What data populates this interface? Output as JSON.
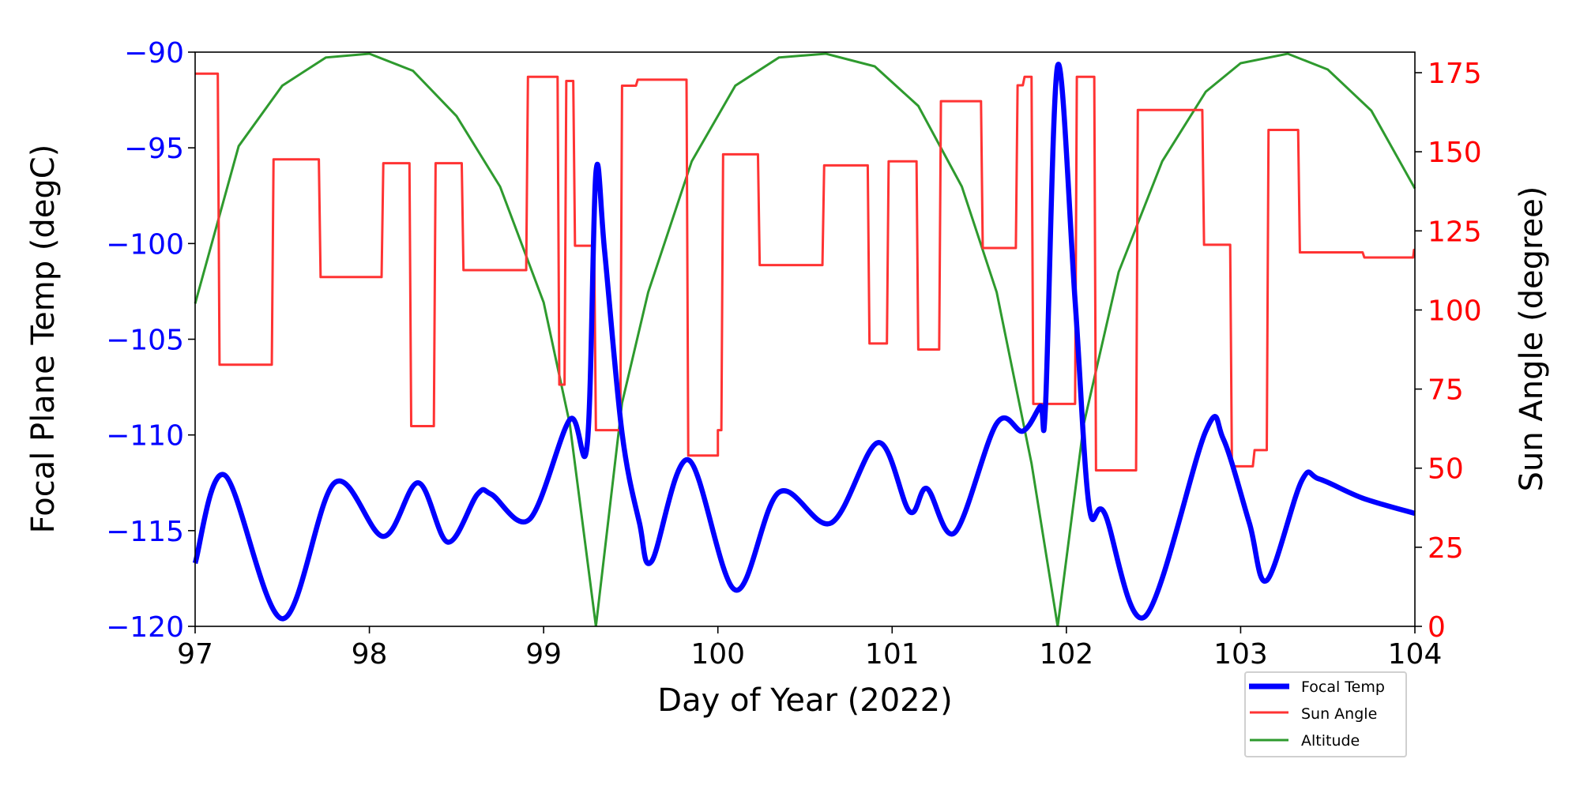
{
  "chart_data": {
    "type": "line",
    "xlabel": "Day of Year (2022)",
    "ylabel_left": "Focal Plane Temp (degC)",
    "ylabel_right": "Sun Angle (degree)",
    "xlim": [
      97,
      104
    ],
    "ylim_left": [
      -120,
      -90
    ],
    "ylim_right": [
      0,
      181.5
    ],
    "x_ticks": [
      "97",
      "98",
      "99",
      "100",
      "101",
      "102",
      "103",
      "104"
    ],
    "y_left_ticks": [
      "-90",
      "-95",
      "-100",
      "-105",
      "-110",
      "-115",
      "-120"
    ],
    "y_right_ticks": [
      "175",
      "150",
      "125",
      "100",
      "75",
      "50",
      "25",
      "0"
    ],
    "legend_position": "lower-right (below axes)",
    "colors": {
      "focal": "#0000ff",
      "sun": "#ff3333",
      "altitude": "#2e9a2e",
      "left_axis": "#0000ff",
      "right_axis": "#ff0000"
    },
    "series": [
      {
        "name": "Focal Temp",
        "axis": "left",
        "x": [
          97.0,
          97.17,
          97.5,
          97.8,
          98.08,
          98.28,
          98.45,
          98.62,
          98.7,
          98.92,
          99.15,
          99.25,
          99.3,
          99.35,
          99.45,
          99.55,
          99.62,
          99.83,
          100.1,
          100.35,
          100.65,
          100.92,
          101.1,
          101.2,
          101.36,
          101.6,
          101.75,
          101.85,
          101.88,
          101.95,
          102.05,
          102.13,
          102.22,
          102.45,
          102.8,
          102.9,
          103.05,
          103.15,
          103.35,
          103.45,
          103.7,
          104.0
        ],
        "y": [
          -116.7,
          -112.1,
          -119.6,
          -112.5,
          -115.3,
          -112.5,
          -115.6,
          -113.1,
          -113.1,
          -114.4,
          -109.2,
          -110.5,
          -96.3,
          -100.4,
          -109.9,
          -114.6,
          -116.6,
          -111.3,
          -118.1,
          -113.0,
          -114.6,
          -110.4,
          -114.0,
          -112.8,
          -115.1,
          -109.4,
          -109.8,
          -108.5,
          -108.5,
          -90.7,
          -103.0,
          -113.7,
          -114.1,
          -119.5,
          -109.8,
          -110.2,
          -114.6,
          -117.6,
          -112.4,
          -112.3,
          -113.3,
          -114.1
        ]
      },
      {
        "name": "Sun Angle",
        "axis": "right",
        "style": "step",
        "segments": [
          [
            97.0,
            97.13,
            174.7
          ],
          [
            97.14,
            97.44,
            82.7
          ],
          [
            97.45,
            97.71,
            147.6
          ],
          [
            97.72,
            98.07,
            110.4
          ],
          [
            98.08,
            98.23,
            146.4
          ],
          [
            98.24,
            98.37,
            63.3
          ],
          [
            98.38,
            98.53,
            146.4
          ],
          [
            98.54,
            98.9,
            112.6
          ],
          [
            98.91,
            99.08,
            173.7
          ],
          [
            99.09,
            99.12,
            76.4
          ],
          [
            99.13,
            99.17,
            172.4
          ],
          [
            99.18,
            99.29,
            120.3
          ],
          [
            99.3,
            99.44,
            62.0
          ],
          [
            99.45,
            99.53,
            170.9
          ],
          [
            99.54,
            99.82,
            172.8
          ],
          [
            99.83,
            100.0,
            54.0
          ],
          [
            100.0,
            100.02,
            62.0
          ],
          [
            100.03,
            100.23,
            149.2
          ],
          [
            100.24,
            100.6,
            114.2
          ],
          [
            100.61,
            100.86,
            145.7
          ],
          [
            100.87,
            100.97,
            89.4
          ],
          [
            100.98,
            101.14,
            147.0
          ],
          [
            101.15,
            101.27,
            87.5
          ],
          [
            101.28,
            101.51,
            166.0
          ],
          [
            101.52,
            101.71,
            119.6
          ],
          [
            101.72,
            101.75,
            171.0
          ],
          [
            101.76,
            101.8,
            173.7
          ],
          [
            101.81,
            102.05,
            70.3
          ],
          [
            102.06,
            102.16,
            173.7
          ],
          [
            102.17,
            102.4,
            49.3
          ],
          [
            102.41,
            102.78,
            163.2
          ],
          [
            102.79,
            102.94,
            120.6
          ],
          [
            102.95,
            103.07,
            50.6
          ],
          [
            103.08,
            103.15,
            55.7
          ],
          [
            103.16,
            103.33,
            156.9
          ],
          [
            103.34,
            103.7,
            118.2
          ],
          [
            103.71,
            103.99,
            116.6
          ],
          [
            103.995,
            104.0,
            119.0
          ]
        ]
      },
      {
        "name": "Altitude",
        "axis": "right",
        "x": [
          97.0,
          97.25,
          97.5,
          97.75,
          98.0,
          98.25,
          98.5,
          98.75,
          99.0,
          99.15,
          99.3,
          99.45,
          99.6,
          99.85,
          100.1,
          100.35,
          100.62,
          100.9,
          101.15,
          101.4,
          101.6,
          101.8,
          101.95,
          102.1,
          102.3,
          102.55,
          102.8,
          103.0,
          103.27,
          103.5,
          103.75,
          104.0
        ],
        "y": [
          102,
          151.8,
          170.9,
          179.8,
          181,
          175.6,
          161.3,
          139,
          102.4,
          64,
          0,
          70.6,
          105.6,
          147,
          170.9,
          179.8,
          181,
          177,
          164.5,
          139,
          105.6,
          51.5,
          0,
          64,
          112,
          147,
          169,
          178,
          181,
          176,
          163,
          138.4
        ]
      }
    ]
  }
}
